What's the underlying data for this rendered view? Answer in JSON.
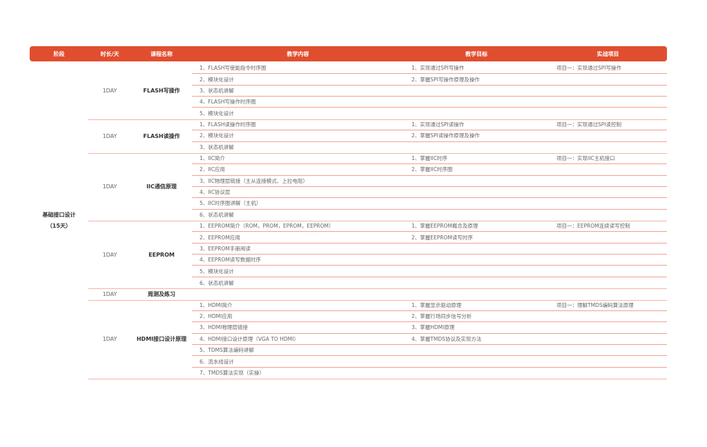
{
  "colors": {
    "header": "#e04e2f",
    "rule": "#f2a08f"
  },
  "header": [
    "阶段",
    "时长/天",
    "课程名称",
    "教学内容",
    "教学目标",
    "实战项目"
  ],
  "stage": {
    "name": "基础接口设计",
    "duration": "（15天）"
  },
  "groups": [
    {
      "day": "1DAY",
      "name": "FLASH写操作",
      "content": [
        "1、FLASH写使能指令时序图",
        "2、模块化设计",
        "3、状态机讲解",
        "4、FLASH写操作时序图",
        "5、模块化设计"
      ],
      "goals": [
        "1、实现通过SPI写操作",
        "2、掌握SPI写操作原理及操作"
      ],
      "project": "项目一：实现通过SPI写操作"
    },
    {
      "day": "1DAY",
      "name": "FLASH读操作",
      "content": [
        "1、FLASH读操作时序图",
        "2、模块化设计",
        "3、状态机讲解"
      ],
      "goals": [
        "1、实现通过SPI读操作",
        "2、掌握SPI读操作原理及操作"
      ],
      "project": "项目一：实现通过SPI读控制"
    },
    {
      "day": "1DAY",
      "name": "IIC通信原理",
      "content": [
        "1、IIC简介",
        "2、IIC应用",
        "3、IIC物理层链接（主从连接模式、上拉电阻）",
        "4、IIC协议层",
        "5、IIC时序图讲解（主机）",
        "6、状态机讲解"
      ],
      "goals": [
        "1、掌握IIC时序",
        "2、掌握IIC时序图"
      ],
      "project": "项目一：实现IIC主机接口"
    },
    {
      "day": "1DAY",
      "name": "EEPROM",
      "content": [
        "1、EEPROM简介（ROM，PROM，EPROM，EEPROM）",
        "2、EEPROM应用",
        "3、EEPROM手册阅读",
        "4、EEPROM读写数据时序",
        "5、模块化设计",
        "6、状态机讲解"
      ],
      "goals": [
        "1、掌握EEPROM概念及原理",
        "2、掌握EEPROM读写时序"
      ],
      "project": "项目一：EEPROM连续读写控制"
    },
    {
      "day": "1DAY",
      "name": "周测及练习",
      "content": [
        ""
      ],
      "goals": [],
      "project": ""
    },
    {
      "day": "1DAY",
      "name": "HDMI接口设计原理",
      "content": [
        "1、HDMI简介",
        "2、HDMI应用",
        "3、HDMI物理层链接",
        "4、HDMI接口设计原理（VGA TO HDMI）",
        "5、TDMS算法编码讲解",
        "6、流水线设计",
        "7、TMDS算法实现（实操）"
      ],
      "goals": [
        "1、掌握显示驱动原理",
        "2、掌握行场同步信号分析",
        "3、掌握HDMI原理",
        "4、掌握TMDS协议及实现方法"
      ],
      "project": "项目一：理解TMDS编码算法原理"
    }
  ]
}
